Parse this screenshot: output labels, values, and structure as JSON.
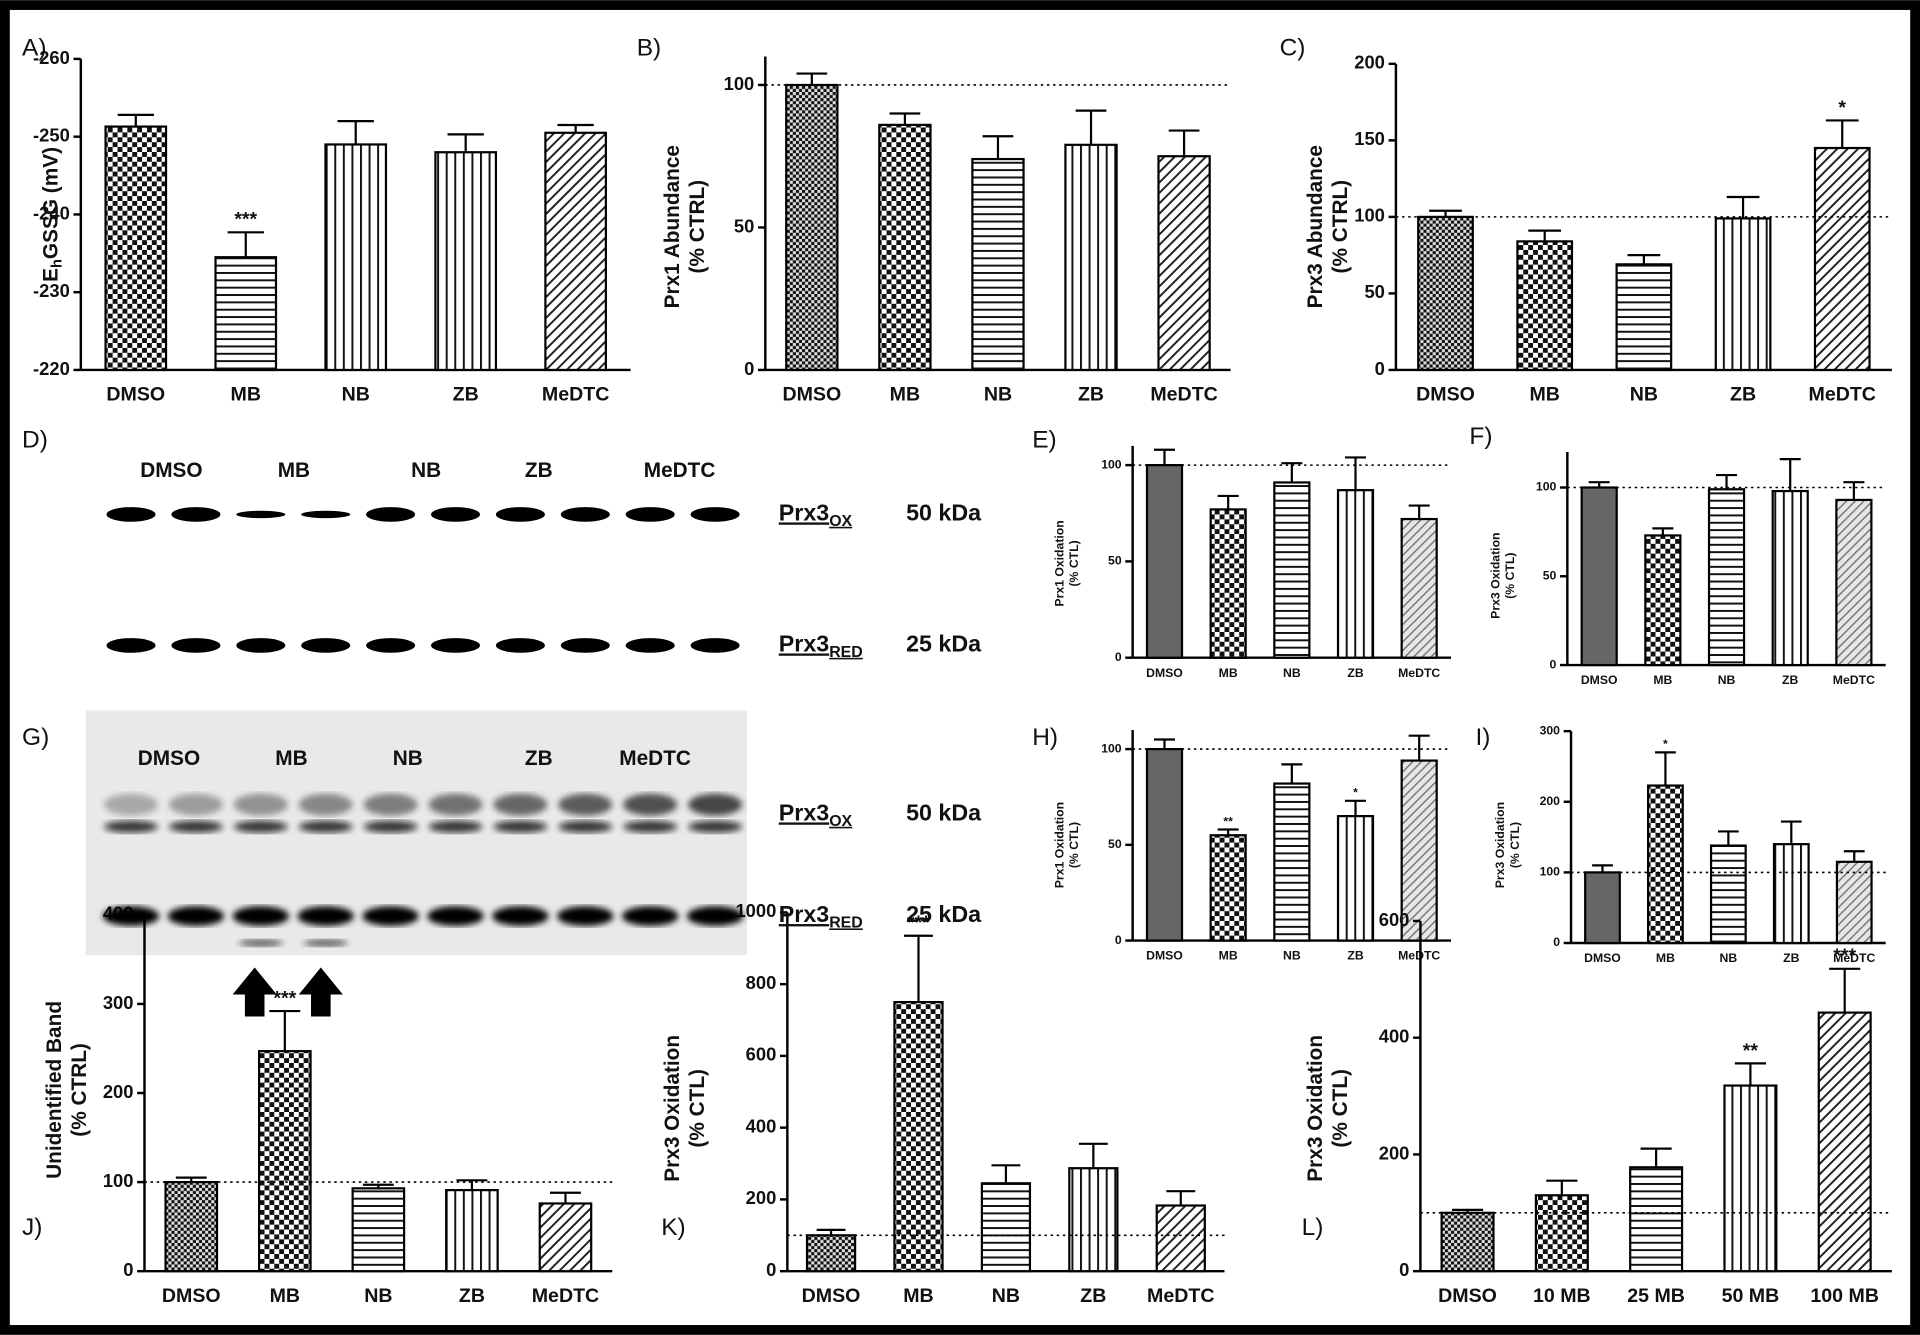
{
  "chart_data": [
    {
      "type": "bar",
      "panel_label": "A)",
      "ylabel": {
        "main": "E",
        "sub": "h",
        "rest": "GSSG (mV)"
      },
      "categories": [
        "DMSO",
        "MB",
        "NB",
        "ZB",
        "MeDTC"
      ],
      "values": [
        -251.3,
        -234.5,
        -249,
        -248,
        -250.5
      ],
      "errors": [
        1.5,
        3.2,
        3,
        2.3,
        1
      ],
      "patterns": [
        "checker",
        "hlines",
        "vlines",
        "vlines",
        "diag"
      ],
      "ylim": [
        -220,
        -260
      ],
      "yticks": [
        -260,
        -250,
        -240,
        -230,
        -220
      ],
      "annotations": [
        {
          "x": "MB",
          "text": "***"
        }
      ]
    },
    {
      "type": "bar",
      "panel_label": "B)",
      "ylabel": [
        "Prx1 Abundance",
        "(% CTRL)"
      ],
      "categories": [
        "DMSO",
        "MB",
        "NB",
        "ZB",
        "MeDTC"
      ],
      "values": [
        100,
        86,
        74,
        79,
        75
      ],
      "errors": [
        4,
        4,
        8,
        12,
        9
      ],
      "patterns": [
        "checker-dense",
        "checker",
        "hlines",
        "vlines",
        "diag"
      ],
      "ylim": [
        0,
        110
      ],
      "yticks": [
        0,
        50,
        100
      ],
      "reference_line": 100
    },
    {
      "type": "bar",
      "panel_label": "C)",
      "ylabel": [
        "Prx3 Abundance",
        "(% CTRL)"
      ],
      "categories": [
        "DMSO",
        "MB",
        "NB",
        "ZB",
        "MeDTC"
      ],
      "values": [
        100,
        84,
        69,
        99,
        145
      ],
      "errors": [
        4,
        7,
        6,
        14,
        18
      ],
      "patterns": [
        "checker-dense",
        "checker",
        "hlines",
        "vlines",
        "diag"
      ],
      "ylim": [
        0,
        200
      ],
      "yticks": [
        0,
        50,
        100,
        150,
        200
      ],
      "reference_line": 100,
      "annotations": [
        {
          "x": "MeDTC",
          "text": "*"
        }
      ]
    },
    {
      "type": "bar",
      "panel_label": "E)",
      "ylabel": [
        "Prx1 Oxidation",
        "(% CTL)"
      ],
      "categories": [
        "DMSO",
        "MB",
        "NB",
        "ZB",
        "MeDTC"
      ],
      "values": [
        100,
        77,
        91,
        87,
        72
      ],
      "errors": [
        8,
        7,
        10,
        17,
        7
      ],
      "patterns": [
        "dark",
        "checker",
        "hlines",
        "vlines",
        "diag-light"
      ],
      "ylim": [
        0,
        110
      ],
      "yticks": [
        0,
        50,
        100
      ],
      "reference_line": 100
    },
    {
      "type": "bar",
      "panel_label": "F)",
      "ylabel": [
        "Prx3 Oxidation",
        "(% CTL)"
      ],
      "categories": [
        "DMSO",
        "MB",
        "NB",
        "ZB",
        "MeDTC"
      ],
      "values": [
        100,
        73,
        99,
        98,
        93
      ],
      "errors": [
        3,
        4,
        8,
        18,
        10
      ],
      "patterns": [
        "dark",
        "checker",
        "hlines",
        "vlines",
        "diag-light"
      ],
      "ylim": [
        0,
        120
      ],
      "yticks": [
        0,
        50,
        100
      ],
      "reference_line": 100
    },
    {
      "type": "bar",
      "panel_label": "H)",
      "ylabel": [
        "Prx1 Oxidation",
        "(% CTL)"
      ],
      "categories": [
        "DMSO",
        "MB",
        "NB",
        "ZB",
        "MeDTC"
      ],
      "values": [
        100,
        55,
        82,
        65,
        94
      ],
      "errors": [
        5,
        3,
        10,
        8,
        13
      ],
      "patterns": [
        "dark",
        "checker",
        "hlines",
        "vlines",
        "diag-light"
      ],
      "ylim": [
        0,
        110
      ],
      "yticks": [
        0,
        50,
        100
      ],
      "reference_line": 100,
      "annotations": [
        {
          "x": "MB",
          "text": "**"
        },
        {
          "x": "ZB",
          "text": "*"
        }
      ]
    },
    {
      "type": "bar",
      "panel_label": "I)",
      "ylabel": [
        "Prx3 Oxidation",
        "(% CTL)"
      ],
      "categories": [
        "DMSO",
        "MB",
        "NB",
        "ZB",
        "MeDTC"
      ],
      "values": [
        100,
        223,
        138,
        140,
        115
      ],
      "errors": [
        10,
        47,
        20,
        32,
        15
      ],
      "patterns": [
        "dark",
        "checker",
        "hlines",
        "vlines",
        "diag-light"
      ],
      "ylim": [
        0,
        300
      ],
      "yticks": [
        0,
        100,
        200,
        300
      ],
      "reference_line": 100,
      "annotations": [
        {
          "x": "MB",
          "text": "*"
        }
      ]
    },
    {
      "type": "bar",
      "panel_label": "J)",
      "ylabel": [
        "Unidentified Band",
        "(% CTRL)"
      ],
      "categories": [
        "DMSO",
        "MB",
        "NB",
        "ZB",
        "MeDTC"
      ],
      "values": [
        100,
        247,
        93,
        91,
        76
      ],
      "errors": [
        5,
        45,
        4,
        11,
        12
      ],
      "patterns": [
        "checker-dense",
        "checker",
        "hlines",
        "vlines",
        "diag"
      ],
      "ylim": [
        0,
        400
      ],
      "yticks": [
        0,
        100,
        200,
        300,
        400
      ],
      "reference_line": 100,
      "annotations": [
        {
          "x": "MB",
          "text": "***"
        }
      ]
    },
    {
      "type": "bar",
      "panel_label": "K)",
      "ylabel": [
        "Prx3 Oxidation",
        "(% CTL)"
      ],
      "categories": [
        "DMSO",
        "MB",
        "NB",
        "ZB",
        "MeDTC"
      ],
      "values": [
        100,
        750,
        245,
        287,
        183
      ],
      "errors": [
        15,
        185,
        50,
        68,
        40
      ],
      "patterns": [
        "checker-dense",
        "checker",
        "hlines",
        "vlines",
        "diag"
      ],
      "ylim": [
        0,
        1000
      ],
      "yticks": [
        0,
        200,
        400,
        600,
        800,
        1000
      ],
      "reference_line": 100,
      "annotations": [
        {
          "x": "MB",
          "text": "***"
        }
      ]
    },
    {
      "type": "bar",
      "panel_label": "L)",
      "ylabel": [
        "Prx3 Oxidation",
        "(% CTL)"
      ],
      "categories": [
        "DMSO",
        "10 MB",
        "25 MB",
        "50 MB",
        "100 MB"
      ],
      "values": [
        100,
        130,
        178,
        318,
        443
      ],
      "errors": [
        5,
        25,
        32,
        38,
        75
      ],
      "patterns": [
        "checker-dense",
        "checker",
        "hlines",
        "vlines",
        "diag"
      ],
      "ylim": [
        0,
        600
      ],
      "yticks": [
        0,
        200,
        400,
        600
      ],
      "reference_line": 100,
      "annotations": [
        {
          "x": "50 MB",
          "text": "**"
        },
        {
          "x": "100 MB",
          "text": "***"
        }
      ]
    }
  ],
  "blots": [
    {
      "panel_label": "D)",
      "lanes": [
        "DMSO",
        "MB",
        "NB",
        "ZB",
        "MeDTC"
      ],
      "bands": [
        {
          "name": "Prx3",
          "sub": "OX",
          "size": "50 kDa"
        },
        {
          "name": "Prx3",
          "sub": "RED",
          "size": "25 kDa"
        }
      ]
    },
    {
      "panel_label": "G)",
      "lanes": [
        "DMSO",
        "MB",
        "NB",
        "ZB",
        "MeDTC"
      ],
      "bands": [
        {
          "name": "Prx3",
          "sub": "OX",
          "size": "50 kDa"
        },
        {
          "name": "Prx3",
          "sub": "RED",
          "size": "25 kDa"
        }
      ]
    }
  ]
}
